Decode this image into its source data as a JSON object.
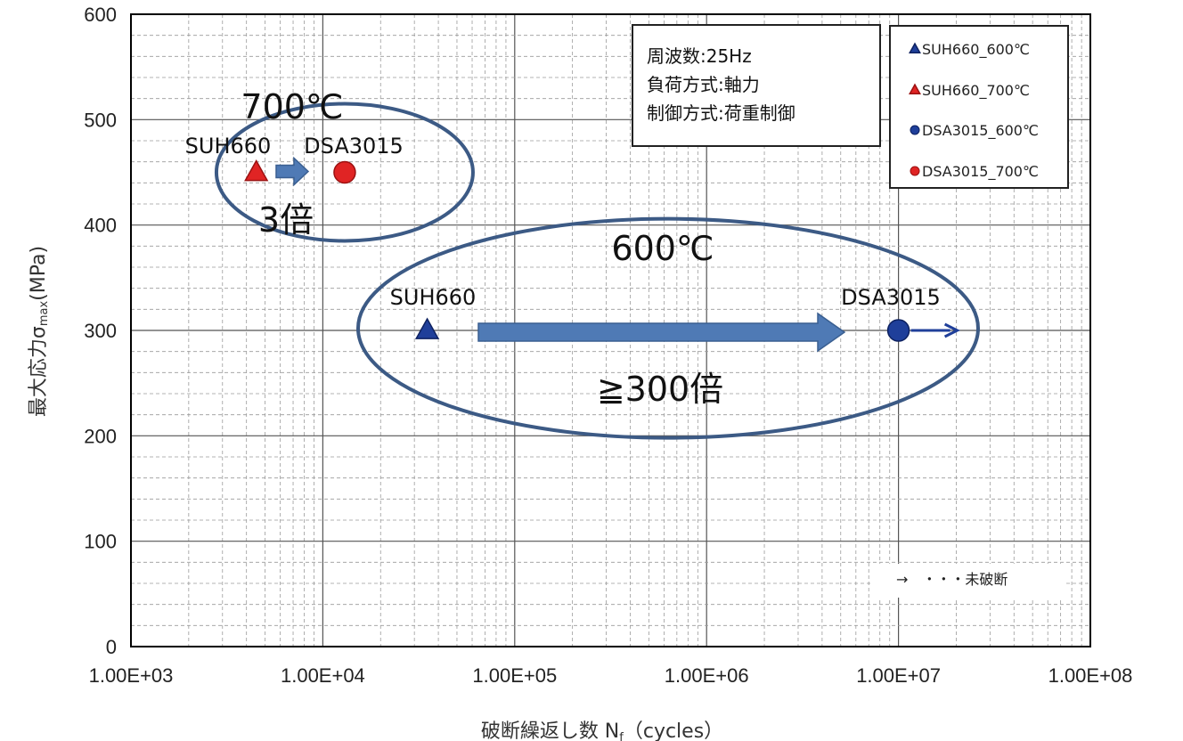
{
  "chart_data": {
    "type": "scatter",
    "x_scale": "log",
    "xlabel": "破断繰返し数 N",
    "xlabel_sub": "f",
    "xlabel_suffix": "（cycles）",
    "ylabel": "最大応力σ",
    "ylabel_sub": "max",
    "ylabel_suffix": "(MPa)",
    "xlim": [
      1000,
      100000000
    ],
    "ylim": [
      0,
      600
    ],
    "x_tick_values": [
      1000,
      10000,
      100000,
      1000000,
      10000000,
      100000000
    ],
    "x_tick_labels": [
      "1.00E+03",
      "1.00E+04",
      "1.00E+05",
      "1.00E+06",
      "1.00E+07",
      "1.00E+08"
    ],
    "y_tick_values": [
      0,
      100,
      200,
      300,
      400,
      500,
      600
    ],
    "y_tick_labels": [
      "0",
      "100",
      "200",
      "300",
      "400",
      "500",
      "600"
    ],
    "grid": true,
    "series": [
      {
        "name": "SUH660_600℃",
        "marker": "triangle",
        "color": "#1f3f9a",
        "points": [
          {
            "x": 35000,
            "y": 300
          }
        ],
        "runout": false
      },
      {
        "name": "SUH660_700℃",
        "marker": "triangle",
        "color": "#e02424",
        "points": [
          {
            "x": 4500,
            "y": 450
          }
        ],
        "runout": false
      },
      {
        "name": "DSA3015_600℃",
        "marker": "circle",
        "color": "#1f3f9a",
        "points": [
          {
            "x": 10000000,
            "y": 300
          }
        ],
        "runout": true
      },
      {
        "name": "DSA3015_700℃",
        "marker": "circle",
        "color": "#e02424",
        "points": [
          {
            "x": 13000,
            "y": 450
          }
        ],
        "runout": false
      }
    ],
    "legend_position": "top-right",
    "conditions": [
      "周波数:25Hz",
      "負荷方式:軸力",
      "制御方式:荷重制御"
    ],
    "runout_note": "→　・・・未破断",
    "annotations": {
      "temp_700": "700℃",
      "suh_label_700": "SUH660",
      "dsa_label_700": "DSA3015",
      "factor_700": "3倍",
      "temp_600": "600℃",
      "suh_label_600": "SUH660",
      "dsa_label_600": "DSA3015",
      "factor_600": "≧300倍"
    },
    "colors": {
      "blue": "#1f3f9a",
      "red": "#e02424",
      "ellipse": "#3c5a85",
      "arrow_fill": "#4f7ab5",
      "arrow_stroke": "#3a5f91",
      "grid": "#9a9a9a"
    }
  }
}
